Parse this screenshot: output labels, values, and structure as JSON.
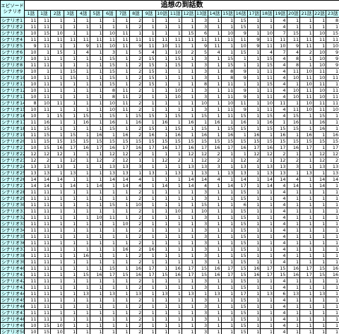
{
  "corner": {
    "line1": "エピソード",
    "line2": "シナリオ"
  },
  "title": "追想の到話数",
  "columns": [
    "1話",
    "1話",
    "2話",
    "3話",
    "4話",
    "5話",
    "6話",
    "7話",
    "8話",
    "9話",
    "10話",
    "11話",
    "12話",
    "13話",
    "14話",
    "15話",
    "16話",
    "17話",
    "18話",
    "19話",
    "20話",
    "21話",
    "22話",
    "23話"
  ],
  "rows": [
    {
      "label": "シナリオ1",
      "values": [
        "11",
        "11",
        "1",
        "1",
        "1",
        "1",
        "1",
        "1",
        "2",
        "1",
        "1",
        "1",
        "1",
        "3",
        "1",
        "1",
        "15",
        "1",
        "1",
        "4",
        "1",
        "1",
        "1",
        "8"
      ]
    },
    {
      "label": "シナリオ2",
      "values": [
        "11",
        "11",
        "1",
        "1",
        "1",
        "1",
        "1",
        "1",
        "2",
        "1",
        "1",
        "1",
        "1",
        "3",
        "1",
        "1",
        "15",
        "1",
        "1",
        "4",
        "1",
        "1",
        "1",
        "1"
      ]
    },
    {
      "label": "シナリオ3",
      "values": [
        "10",
        "15",
        "10",
        "1",
        "1",
        "1",
        "10",
        "11",
        "1",
        "1",
        "1",
        "1",
        "15",
        "6",
        "1",
        "10",
        "9",
        "1",
        "10",
        "7",
        "15",
        "1",
        "10",
        "15"
      ]
    },
    {
      "label": "シナリオ4",
      "values": [
        "11",
        "11",
        "11",
        "11",
        "11",
        "11",
        "11",
        "11",
        "11",
        "11",
        "11",
        "11",
        "11",
        "11",
        "11",
        "11",
        "11",
        "9",
        "11",
        "11",
        "11",
        "11",
        "11",
        "11"
      ]
    },
    {
      "label": "シナリオ5",
      "values": [
        "9",
        "11",
        "1",
        "1",
        "9",
        "11",
        "10",
        "11",
        "9",
        "11",
        "10",
        "11",
        "1",
        "9",
        "11",
        "1",
        "10",
        "9",
        "11",
        "10",
        "9",
        "11",
        "1",
        "10"
      ]
    },
    {
      "label": "シナリオ6",
      "values": [
        "10",
        "1",
        "15",
        "1",
        "4",
        "1",
        "3",
        "1",
        "5",
        "4",
        "1",
        "10",
        "2",
        "5",
        "4",
        "1",
        "15",
        "1",
        "4",
        "7",
        "4",
        "2",
        "10",
        "9"
      ]
    },
    {
      "label": "シナリオ7",
      "values": [
        "10",
        "11",
        "1",
        "1",
        "1",
        "1",
        "15",
        "1",
        "2",
        "15",
        "1",
        "15",
        "1",
        "3",
        "1",
        "15",
        "1",
        "1",
        "15",
        "4",
        "8",
        "1",
        "10",
        "9"
      ]
    },
    {
      "label": "シナリオ8",
      "values": [
        "11",
        "11",
        "1",
        "1",
        "1",
        "1",
        "15",
        "1",
        "2",
        "15",
        "1",
        "15",
        "1",
        "3",
        "1",
        "15",
        "1",
        "1",
        "15",
        "4",
        "8",
        "1",
        "10",
        "9"
      ]
    },
    {
      "label": "シナリオ9",
      "values": [
        "10",
        "1",
        "1",
        "15",
        "1",
        "1",
        "15",
        "1",
        "2",
        "15",
        "1",
        "1",
        "1",
        "3",
        "1",
        "8",
        "9",
        "1",
        "11",
        "4",
        "11",
        "10",
        "11",
        "1"
      ]
    },
    {
      "label": "シナリオ10",
      "values": [
        "10",
        "11",
        "1",
        "15",
        "1",
        "1",
        "15",
        "1",
        "2",
        "15",
        "1",
        "1",
        "1",
        "3",
        "1",
        "8",
        "9",
        "1",
        "11",
        "4",
        "10",
        "11",
        "10",
        "11"
      ]
    },
    {
      "label": "シナリオ11",
      "values": [
        "10",
        "11",
        "1",
        "1",
        "1",
        "1",
        "15",
        "1",
        "2",
        "15",
        "1",
        "1",
        "1",
        "8",
        "1",
        "11",
        "1",
        "1",
        "15",
        "4",
        "1",
        "10",
        "11",
        "1"
      ]
    },
    {
      "label": "シナリオ12",
      "values": [
        "10",
        "11",
        "1",
        "1",
        "1",
        "1",
        "8",
        "11",
        "2",
        "1",
        "1",
        "10",
        "1",
        "3",
        "1",
        "11",
        "9",
        "1",
        "11",
        "4",
        "10",
        "11",
        "10",
        "11"
      ]
    },
    {
      "label": "シナリオ13",
      "values": [
        "10",
        "11",
        "1",
        "1",
        "1",
        "1",
        "8",
        "11",
        "2",
        "1",
        "1",
        "10",
        "1",
        "3",
        "1",
        "11",
        "9",
        "1",
        "11",
        "4",
        "10",
        "11",
        "10",
        "11"
      ]
    },
    {
      "label": "シナリオ14",
      "values": [
        "8",
        "10",
        "11",
        "1",
        "1",
        "1",
        "10",
        "11",
        "2",
        "1",
        "1",
        "1",
        "1",
        "10",
        "1",
        "10",
        "11",
        "1",
        "10",
        "11",
        "1",
        "10",
        "11",
        "11"
      ]
    },
    {
      "label": "シナリオ15",
      "values": [
        "10",
        "11",
        "1",
        "1",
        "1",
        "1",
        "10",
        "11",
        "2",
        "1",
        "1",
        "1",
        "1",
        "3",
        "1",
        "11",
        "9",
        "1",
        "11",
        "4",
        "11",
        "10",
        "11",
        "10"
      ]
    },
    {
      "label": "シナリオ16",
      "values": [
        "10",
        "1",
        "15",
        "1",
        "15",
        "1",
        "15",
        "1",
        "15",
        "15",
        "1",
        "15",
        "1",
        "15",
        "1",
        "11",
        "15",
        "1",
        "15",
        "4",
        "15",
        "1",
        "15",
        "1"
      ]
    },
    {
      "label": "シナリオ17",
      "values": [
        "11",
        "16",
        "1",
        "1",
        "16",
        "1",
        "16",
        "1",
        "16",
        "1",
        "16",
        "1",
        "16",
        "1",
        "16",
        "1",
        "16",
        "1",
        "16",
        "1",
        "16",
        "1",
        "16",
        "1"
      ]
    },
    {
      "label": "シナリオ18",
      "values": [
        "11",
        "15",
        "1",
        "1",
        "1",
        "1",
        "15",
        "1",
        "2",
        "15",
        "1",
        "15",
        "1",
        "15",
        "1",
        "15",
        "15",
        "1",
        "15",
        "15",
        "15",
        "1",
        "16",
        "1"
      ]
    },
    {
      "label": "シナリオ19",
      "values": [
        "11",
        "15",
        "1",
        "15",
        "1",
        "16",
        "1",
        "16",
        "2",
        "16",
        "1",
        "16",
        "1",
        "16",
        "1",
        "16",
        "1",
        "16",
        "1",
        "16",
        "1",
        "16",
        "1",
        "16"
      ]
    },
    {
      "label": "シナリオ20",
      "values": [
        "11",
        "15",
        "15",
        "15",
        "15",
        "15",
        "15",
        "15",
        "15",
        "15",
        "15",
        "15",
        "15",
        "15",
        "15",
        "15",
        "15",
        "15",
        "15",
        "15",
        "15",
        "15",
        "15",
        "15"
      ]
    },
    {
      "label": "シナリオ21",
      "values": [
        "10",
        "15",
        "16",
        "17",
        "16",
        "17",
        "16",
        "17",
        "16",
        "17",
        "16",
        "17",
        "16",
        "17",
        "16",
        "17",
        "16",
        "17",
        "16",
        "17",
        "16",
        "17",
        "1",
        "17"
      ]
    },
    {
      "label": "シナリオ22",
      "values": [
        "12",
        "12",
        "12",
        "1",
        "1",
        "1",
        "12",
        "12",
        "2",
        "1",
        "1",
        "1",
        "12",
        "12",
        "2",
        "1",
        "1",
        "12",
        "12",
        "2",
        "1",
        "1",
        "12",
        "12"
      ]
    },
    {
      "label": "シナリオ23",
      "values": [
        "12",
        "2",
        "1",
        "12",
        "1",
        "12",
        "2",
        "12",
        "1",
        "1",
        "12",
        "2",
        "1",
        "12",
        "2",
        "1",
        "12",
        "2",
        "1",
        "12",
        "2",
        "1",
        "12",
        "2"
      ]
    },
    {
      "label": "シナリオ24",
      "values": [
        "13",
        "13",
        "13",
        "1",
        "1",
        "1",
        "13",
        "13",
        "3",
        "1",
        "1",
        "1",
        "13",
        "13",
        "3",
        "1",
        "13",
        "1",
        "13",
        "13",
        "3",
        "1",
        "13",
        "13"
      ]
    },
    {
      "label": "シナリオ25",
      "values": [
        "13",
        "13",
        "1",
        "13",
        "1",
        "1",
        "13",
        "13",
        "1",
        "13",
        "1",
        "13",
        "1",
        "13",
        "1",
        "13",
        "13",
        "1",
        "13",
        "13",
        "1",
        "13",
        "1",
        "13"
      ]
    },
    {
      "label": "シナリオ26",
      "values": [
        "14",
        "14",
        "14",
        "1",
        "1",
        "1",
        "14",
        "14",
        "4",
        "1",
        "1",
        "1",
        "14",
        "14",
        "4",
        "1",
        "14",
        "1",
        "14",
        "14",
        "4",
        "1",
        "14",
        "14"
      ]
    },
    {
      "label": "シナリオ27",
      "values": [
        "14",
        "14",
        "1",
        "14",
        "1",
        "14",
        "1",
        "14",
        "4",
        "1",
        "14",
        "1",
        "14",
        "4",
        "1",
        "14",
        "17",
        "1",
        "14",
        "4",
        "14",
        "1",
        "14",
        "1"
      ]
    },
    {
      "label": "シナリオ28",
      "values": [
        "11",
        "11",
        "1",
        "1",
        "1",
        "1",
        "1",
        "1",
        "2",
        "1",
        "1",
        "1",
        "1",
        "3",
        "1",
        "1",
        "15",
        "1",
        "1",
        "4",
        "1",
        "1",
        "1",
        "1"
      ]
    },
    {
      "label": "シナリオ29",
      "values": [
        "11",
        "11",
        "1",
        "1",
        "1",
        "1",
        "1",
        "1",
        "2",
        "1",
        "1",
        "1",
        "1",
        "3",
        "1",
        "1",
        "15",
        "1",
        "1",
        "4",
        "1",
        "1",
        "1",
        "1"
      ]
    },
    {
      "label": "シナリオ30",
      "values": [
        "11",
        "11",
        "1",
        "1",
        "1",
        "1",
        "15",
        "1",
        "10",
        "1",
        "1",
        "1",
        "1",
        "15",
        "1",
        "1",
        "6",
        "1",
        "1",
        "4",
        "1",
        "1",
        "1",
        "1"
      ]
    },
    {
      "label": "シナリオ31",
      "values": [
        "11",
        "11",
        "1",
        "1",
        "1",
        "1",
        "1",
        "1",
        "2",
        "1",
        "1",
        "10",
        "1",
        "10",
        "1",
        "1",
        "15",
        "1",
        "1",
        "4",
        "1",
        "1",
        "1",
        "1"
      ]
    },
    {
      "label": "シナリオ32",
      "values": [
        "11",
        "11",
        "1",
        "1",
        "1",
        "10",
        "11",
        "1",
        "2",
        "1",
        "1",
        "1",
        "1",
        "3",
        "1",
        "1",
        "15",
        "1",
        "1",
        "4",
        "1",
        "1",
        "1",
        "1"
      ]
    },
    {
      "label": "シナリオ33",
      "values": [
        "11",
        "11",
        "1",
        "1",
        "1",
        "1",
        "1",
        "10",
        "2",
        "1",
        "1",
        "1",
        "1",
        "3",
        "1",
        "1",
        "15",
        "1",
        "1",
        "4",
        "1",
        "1",
        "1",
        "1"
      ]
    },
    {
      "label": "シナリオ34",
      "values": [
        "11",
        "11",
        "1",
        "1",
        "1",
        "1",
        "1",
        "1",
        "2",
        "1",
        "1",
        "1",
        "1",
        "3",
        "1",
        "1",
        "15",
        "1",
        "1",
        "4",
        "1",
        "1",
        "1",
        "1"
      ]
    },
    {
      "label": "シナリオ35",
      "values": [
        "11",
        "11",
        "1",
        "1",
        "1",
        "1",
        "1",
        "1",
        "2",
        "1",
        "1",
        "1",
        "1",
        "3",
        "1",
        "1",
        "15",
        "1",
        "1",
        "4",
        "1",
        "1",
        "1",
        "1"
      ]
    },
    {
      "label": "シナリオ36",
      "values": [
        "11",
        "11",
        "1",
        "1",
        "1",
        "1",
        "1",
        "1",
        "2",
        "1",
        "1",
        "1",
        "1",
        "3",
        "1",
        "1",
        "15",
        "1",
        "1",
        "4",
        "1",
        "1",
        "1",
        "1"
      ]
    },
    {
      "label": "シナリオ37",
      "values": [
        "11",
        "11",
        "1",
        "1",
        "1",
        "1",
        "1",
        "16",
        "2",
        "16",
        "1",
        "1",
        "1",
        "3",
        "1",
        "1",
        "15",
        "1",
        "1",
        "4",
        "1",
        "1",
        "1",
        "1"
      ]
    },
    {
      "label": "シナリオ38",
      "values": [
        "11",
        "11",
        "1",
        "1",
        "16",
        "1",
        "1",
        "1",
        "2",
        "1",
        "1",
        "1",
        "1",
        "3",
        "1",
        "1",
        "15",
        "1",
        "1",
        "4",
        "1",
        "1",
        "1",
        "1"
      ]
    },
    {
      "label": "シナリオ39",
      "values": [
        "11",
        "11",
        "1",
        "1",
        "1",
        "1",
        "1",
        "1",
        "2",
        "1",
        "1",
        "1",
        "1",
        "3",
        "1",
        "1",
        "15",
        "1",
        "1",
        "4",
        "1",
        "1",
        "1",
        "1"
      ]
    },
    {
      "label": "シナリオ40",
      "values": [
        "11",
        "11",
        "1",
        "1",
        "1",
        "1",
        "15",
        "1",
        "16",
        "17",
        "1",
        "16",
        "17",
        "15",
        "16",
        "17",
        "15",
        "16",
        "17",
        "15",
        "16",
        "17",
        "15",
        "16"
      ]
    },
    {
      "label": "シナリオ41",
      "values": [
        "11",
        "11",
        "1",
        "1",
        "15",
        "16",
        "17",
        "15",
        "16",
        "17",
        "15",
        "16",
        "17",
        "15",
        "16",
        "17",
        "15",
        "16",
        "17",
        "15",
        "16",
        "17",
        "15",
        "16"
      ]
    },
    {
      "label": "シナリオ42",
      "values": [
        "11",
        "11",
        "1",
        "1",
        "1",
        "1",
        "1",
        "1",
        "2",
        "1",
        "1",
        "1",
        "1",
        "3",
        "1",
        "1",
        "15",
        "1",
        "1",
        "4",
        "1",
        "1",
        "1",
        "1"
      ]
    },
    {
      "label": "シナリオ43",
      "values": [
        "11",
        "11",
        "1",
        "1",
        "1",
        "1",
        "1",
        "1",
        "2",
        "1",
        "1",
        "1",
        "1",
        "3",
        "1",
        "1",
        "15",
        "1",
        "1",
        "4",
        "1",
        "1",
        "1",
        "1"
      ]
    },
    {
      "label": "シナリオ44",
      "values": [
        "11",
        "11",
        "1",
        "1",
        "13",
        "1",
        "13",
        "1",
        "13",
        "1",
        "13",
        "1",
        "13",
        "1",
        "13",
        "1",
        "17",
        "1",
        "13",
        "6",
        "13",
        "1",
        "13",
        "1"
      ]
    },
    {
      "label": "シナリオ45",
      "values": [
        "11",
        "11",
        "1",
        "1",
        "1",
        "1",
        "1",
        "1",
        "2",
        "1",
        "1",
        "1",
        "1",
        "3",
        "1",
        "1",
        "15",
        "1",
        "1",
        "4",
        "1",
        "1",
        "1",
        "1"
      ]
    },
    {
      "label": "シナリオ46",
      "values": [
        "11",
        "11",
        "1",
        "1",
        "1",
        "1",
        "1",
        "1",
        "2",
        "1",
        "1",
        "1",
        "1",
        "3",
        "1",
        "1",
        "15",
        "1",
        "1",
        "4",
        "1",
        "1",
        "1",
        "1"
      ]
    },
    {
      "label": "シナリオ47",
      "values": [
        "11",
        "11",
        "1",
        "1",
        "1",
        "1",
        "1",
        "1",
        "2",
        "1",
        "1",
        "1",
        "1",
        "3",
        "1",
        "1",
        "15",
        "1",
        "1",
        "4",
        "1",
        "1",
        "1",
        "1"
      ]
    },
    {
      "label": "シナリオ48",
      "values": [
        "11",
        "11",
        "1",
        "1",
        "1",
        "1",
        "1",
        "1",
        "2",
        "1",
        "1",
        "1",
        "1",
        "3",
        "1",
        "1",
        "15",
        "1",
        "1",
        "4",
        "1",
        "1",
        "1",
        "1"
      ]
    },
    {
      "label": "シナリオ49",
      "values": [
        "10",
        "15",
        "10",
        "1",
        "1",
        "1",
        "1",
        "1",
        "2",
        "1",
        "1",
        "1",
        "1",
        "3",
        "1",
        "1",
        "15",
        "1",
        "1",
        "4",
        "1",
        "1",
        "1",
        "1"
      ]
    },
    {
      "label": "シナリオ50",
      "values": [
        "10",
        "15",
        "10",
        "1",
        "1",
        "1",
        "1",
        "1",
        "2",
        "1",
        "1",
        "1",
        "1",
        "3",
        "1",
        "1",
        "15",
        "1",
        "1",
        "4",
        "1",
        "1",
        "1",
        "1"
      ]
    }
  ]
}
